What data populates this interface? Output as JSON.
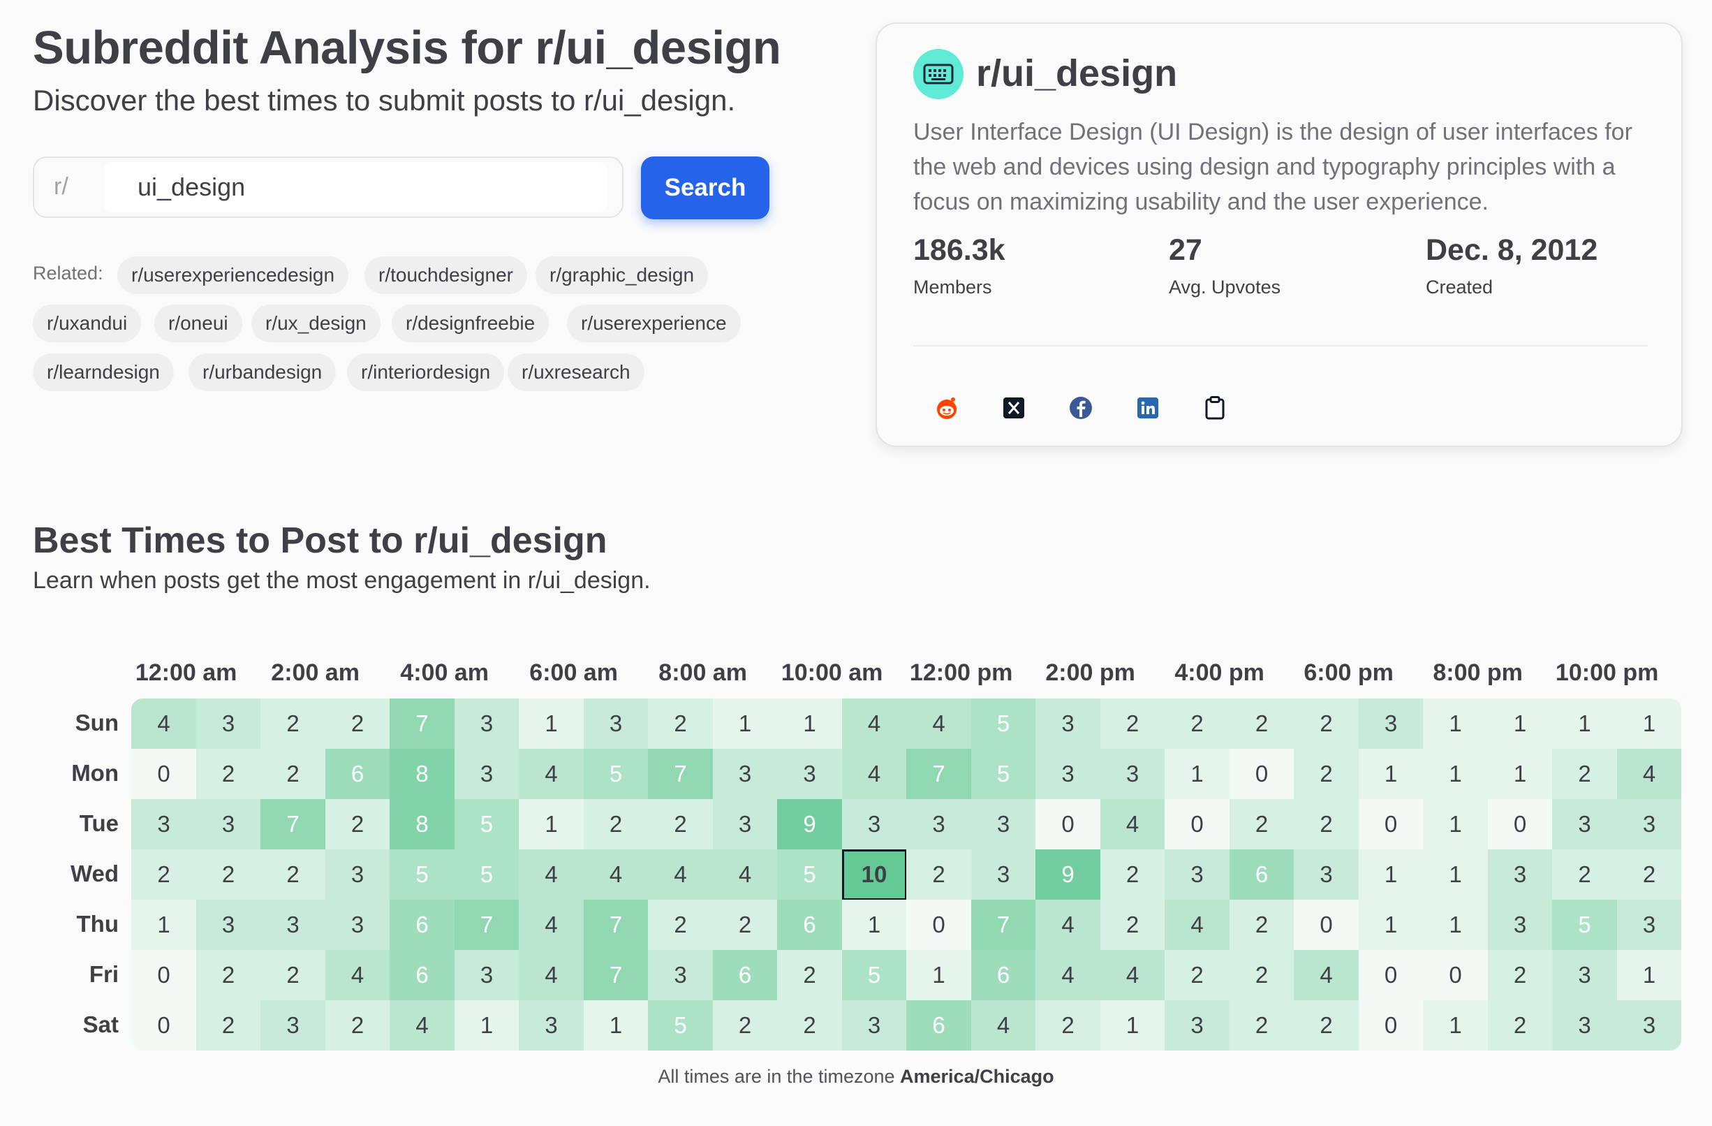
{
  "header": {
    "title": "Subreddit Analysis for r/ui_design",
    "subtitle": "Discover the best times to submit posts to r/ui_design."
  },
  "search": {
    "prefix": "r/",
    "value": "ui_design",
    "button_label": "Search"
  },
  "related": {
    "label": "Related:",
    "items": [
      "r/userexperiencedesign",
      "r/touchdesigner",
      "r/graphic_design",
      "r/uxandui",
      "r/oneui",
      "r/ux_design",
      "r/designfreebie",
      "r/userexperience",
      "r/learndesign",
      "r/urbandesign",
      "r/interiordesign",
      "r/uxresearch"
    ]
  },
  "card": {
    "icon": "keyboard-icon",
    "title": "r/ui_design",
    "description": "User Interface Design (UI Design) is the design of user interfaces for the web and devices using design and typography principles with a focus on maximizing usability and the user experience.",
    "stats": [
      {
        "value": "186.3k",
        "label": "Members"
      },
      {
        "value": "27",
        "label": "Avg. Upvotes"
      },
      {
        "value": "Dec. 8, 2012",
        "label": "Created"
      }
    ],
    "share_icons": [
      "reddit-icon",
      "x-icon",
      "facebook-icon",
      "linkedin-icon",
      "clipboard-icon"
    ]
  },
  "section": {
    "title": "Best Times to Post to r/ui_design",
    "subtitle": "Learn when posts get the most engagement in r/ui_design."
  },
  "heatmap": {
    "hour_labels": [
      "12:00 am",
      "2:00 am",
      "4:00 am",
      "6:00 am",
      "8:00 am",
      "10:00 am",
      "12:00 pm",
      "2:00 pm",
      "4:00 pm",
      "6:00 pm",
      "8:00 pm",
      "10:00 pm"
    ],
    "days": [
      "Sun",
      "Mon",
      "Tue",
      "Wed",
      "Thu",
      "Fri",
      "Sat"
    ],
    "values": [
      [
        4,
        3,
        2,
        2,
        7,
        3,
        1,
        3,
        2,
        1,
        1,
        4,
        4,
        5,
        3,
        2,
        2,
        2,
        2,
        3,
        1,
        1,
        1,
        1
      ],
      [
        0,
        2,
        2,
        6,
        8,
        3,
        4,
        5,
        7,
        3,
        3,
        4,
        7,
        5,
        3,
        3,
        1,
        0,
        2,
        1,
        1,
        1,
        2,
        4
      ],
      [
        3,
        3,
        7,
        2,
        8,
        5,
        1,
        2,
        2,
        3,
        9,
        3,
        3,
        3,
        0,
        4,
        0,
        2,
        2,
        0,
        1,
        0,
        3,
        3
      ],
      [
        2,
        2,
        2,
        3,
        5,
        5,
        4,
        4,
        4,
        4,
        5,
        10,
        2,
        3,
        9,
        2,
        3,
        6,
        3,
        1,
        1,
        3,
        2,
        2
      ],
      [
        1,
        3,
        3,
        3,
        6,
        7,
        4,
        7,
        2,
        2,
        6,
        1,
        0,
        7,
        4,
        2,
        4,
        2,
        0,
        1,
        1,
        3,
        5,
        3
      ],
      [
        0,
        2,
        2,
        4,
        6,
        3,
        4,
        7,
        3,
        6,
        2,
        5,
        1,
        6,
        4,
        4,
        2,
        2,
        4,
        0,
        0,
        2,
        3,
        1
      ],
      [
        0,
        2,
        3,
        2,
        4,
        1,
        3,
        1,
        5,
        2,
        2,
        3,
        6,
        4,
        2,
        1,
        3,
        2,
        2,
        0,
        1,
        2,
        3,
        3
      ]
    ],
    "max_value": 10,
    "colors": {
      "low": "#f3faf6",
      "high": "#64c995",
      "text_dark": "#3f3f46",
      "text_light": "#ffffff"
    },
    "timezone_prefix": "All times are in the timezone ",
    "timezone": "America/Chicago"
  }
}
